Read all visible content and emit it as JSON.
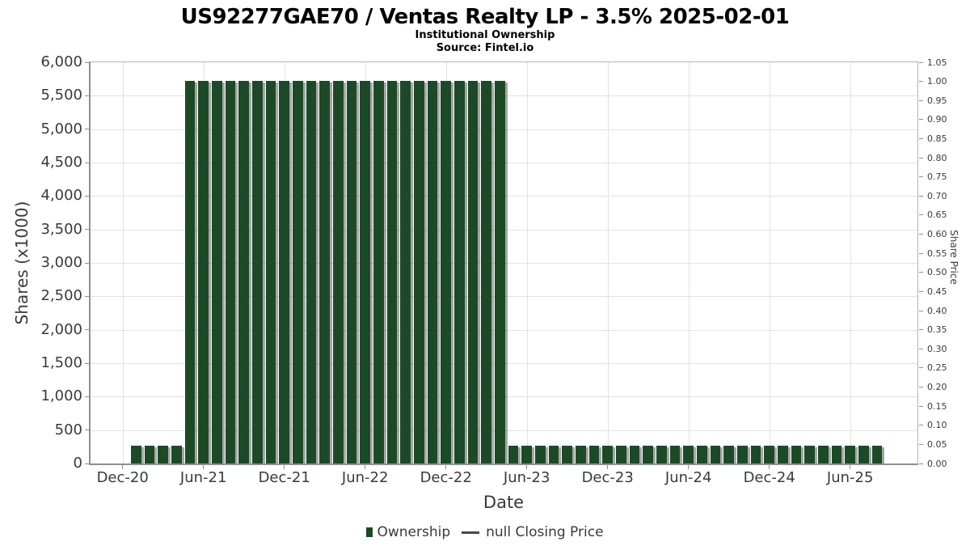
{
  "header": {
    "title": "US92277GAE70 / Ventas Realty LP - 3.5% 2025-02-01",
    "subtitle": "Institutional Ownership",
    "source": "Source: Fintel.io"
  },
  "chart_data": {
    "type": "bar",
    "title": "US92277GAE70 / Ventas Realty LP - 3.5% 2025-02-01",
    "subtitle": "Institutional Ownership",
    "source": "Source: Fintel.io",
    "xlabel": "Date",
    "ylabel_left": "Shares (x1000)",
    "ylabel_right": "Share Price",
    "ylim_left": [
      0,
      6000
    ],
    "ylim_right": [
      0,
      1.05
    ],
    "grid": true,
    "legend_position": "bottom",
    "bar_color": "#1d4a26",
    "bar_shadow_color": "rgba(0,0,0,0.35)",
    "line_marker_color": "#4a4a4a",
    "legend": {
      "ownership_label": "Ownership",
      "price_label": "null Closing Price"
    },
    "x_tick_labels": [
      "Dec-20",
      "Jun-21",
      "Dec-21",
      "Jun-22",
      "Dec-22",
      "Jun-23",
      "Dec-23",
      "Jun-24",
      "Dec-24",
      "Jun-25"
    ],
    "y_left_tick_labels": [
      "0",
      "500",
      "1,000",
      "1,500",
      "2,000",
      "2,500",
      "3,000",
      "3,500",
      "4,000",
      "4,500",
      "5,000",
      "5,500",
      "6,000"
    ],
    "y_right_tick_labels": [
      "0.00",
      "0.05",
      "0.10",
      "0.15",
      "0.20",
      "0.25",
      "0.30",
      "0.35",
      "0.40",
      "0.45",
      "0.50",
      "0.55",
      "0.60",
      "0.65",
      "0.70",
      "0.75",
      "0.80",
      "0.85",
      "0.90",
      "0.95",
      "1.00",
      "1.05"
    ],
    "categories": [
      "2021-01",
      "2021-02",
      "2021-03",
      "2021-04",
      "2021-05",
      "2021-06",
      "2021-07",
      "2021-08",
      "2021-09",
      "2021-10",
      "2021-11",
      "2021-12",
      "2022-01",
      "2022-02",
      "2022-03",
      "2022-04",
      "2022-05",
      "2022-06",
      "2022-07",
      "2022-08",
      "2022-09",
      "2022-10",
      "2022-11",
      "2022-12",
      "2023-01",
      "2023-02",
      "2023-03",
      "2023-04",
      "2023-05",
      "2023-06",
      "2023-07",
      "2023-08",
      "2023-09",
      "2023-10",
      "2023-11",
      "2023-12",
      "2024-01",
      "2024-02",
      "2024-03",
      "2024-04",
      "2024-05",
      "2024-06",
      "2024-07",
      "2024-08",
      "2024-09",
      "2024-10",
      "2024-11",
      "2024-12",
      "2025-01",
      "2025-02",
      "2025-03",
      "2025-04",
      "2025-05",
      "2025-06",
      "2025-07",
      "2025-08"
    ],
    "values": [
      265,
      265,
      265,
      265,
      5722,
      5722,
      5722,
      5722,
      5722,
      5722,
      5722,
      5722,
      5722,
      5722,
      5722,
      5722,
      5722,
      5722,
      5722,
      5722,
      5722,
      5722,
      5722,
      5722,
      5722,
      5722,
      5722,
      5722,
      265,
      265,
      265,
      265,
      265,
      265,
      265,
      265,
      265,
      265,
      265,
      265,
      265,
      265,
      265,
      265,
      265,
      265,
      265,
      265,
      265,
      265,
      265,
      265,
      265,
      265,
      265,
      265
    ]
  }
}
